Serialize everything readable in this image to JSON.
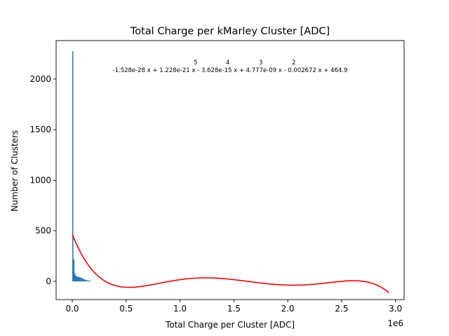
{
  "chart_data": {
    "type": "bar",
    "title": "Total Charge per kMarley Cluster [ADC]",
    "xlabel": "Total Charge per Cluster [ADC]",
    "ylabel": "Number of Clusters",
    "x_multiplier": "1e6",
    "xlim": [
      -150000,
      3080000
    ],
    "ylim": [
      -180,
      2380
    ],
    "x_ticks": [
      {
        "value": 0,
        "label": "0.0"
      },
      {
        "value": 500000,
        "label": "0.5"
      },
      {
        "value": 1000000,
        "label": "1.0"
      },
      {
        "value": 1500000,
        "label": "1.5"
      },
      {
        "value": 2000000,
        "label": "2.0"
      },
      {
        "value": 2500000,
        "label": "2.5"
      },
      {
        "value": 3000000,
        "label": "3.0"
      }
    ],
    "y_ticks": [
      {
        "value": 0,
        "label": "0"
      },
      {
        "value": 500,
        "label": "500"
      },
      {
        "value": 1000,
        "label": "1000"
      },
      {
        "value": 1500,
        "label": "1500"
      },
      {
        "value": 2000,
        "label": "2000"
      }
    ],
    "histogram": {
      "color": "#1f77b4",
      "bins": [
        {
          "x0": 0,
          "x1": 9800,
          "count": 2275
        },
        {
          "x0": 9800,
          "x1": 19600,
          "count": 215
        },
        {
          "x0": 19600,
          "x1": 29400,
          "count": 80
        },
        {
          "x0": 29400,
          "x1": 39200,
          "count": 55
        },
        {
          "x0": 39200,
          "x1": 49000,
          "count": 48
        },
        {
          "x0": 49000,
          "x1": 58800,
          "count": 45
        },
        {
          "x0": 58800,
          "x1": 68600,
          "count": 43
        },
        {
          "x0": 68600,
          "x1": 78400,
          "count": 40
        },
        {
          "x0": 78400,
          "x1": 88200,
          "count": 35
        },
        {
          "x0": 88200,
          "x1": 98000,
          "count": 30
        },
        {
          "x0": 98000,
          "x1": 107800,
          "count": 25
        },
        {
          "x0": 107800,
          "x1": 117600,
          "count": 20
        },
        {
          "x0": 117600,
          "x1": 127400,
          "count": 16
        },
        {
          "x0": 127400,
          "x1": 137200,
          "count": 12
        },
        {
          "x0": 137200,
          "x1": 147000,
          "count": 10
        },
        {
          "x0": 147000,
          "x1": 156800,
          "count": 8
        },
        {
          "x0": 156800,
          "x1": 166600,
          "count": 6
        },
        {
          "x0": 166600,
          "x1": 176400,
          "count": 5
        }
      ]
    },
    "fit_curve": {
      "color": "#ff0000",
      "coefficients_high_to_low": [
        -1.528e-28,
        1.228e-21,
        -3.628e-15,
        4.777e-09,
        -0.002672,
        464.9
      ],
      "x_range": [
        0,
        2940000
      ]
    },
    "annotation": {
      "exponents": [
        "5",
        "4",
        "3",
        "2"
      ],
      "text": "-1.528e-28 x + 1.228e-21 x - 3.628e-15 x + 4.777e-09 x - 0.002672 x + 464.9"
    }
  }
}
